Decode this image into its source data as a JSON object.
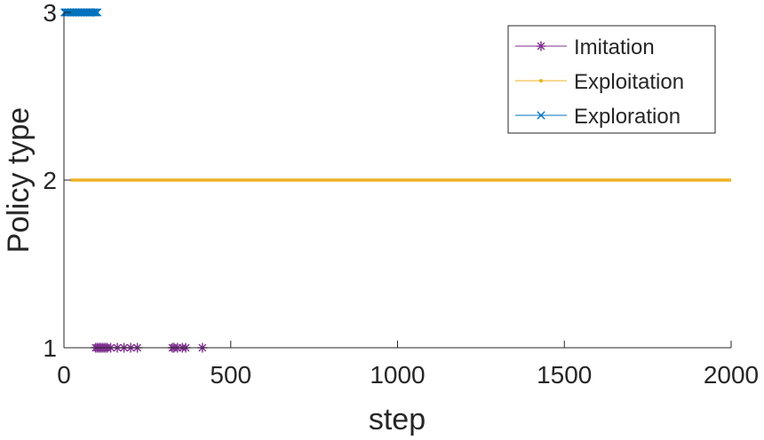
{
  "chart_data": {
    "type": "line",
    "title": "",
    "xlabel": "step",
    "ylabel": "Policy type",
    "xlim": [
      0,
      2000
    ],
    "ylim": [
      1,
      3
    ],
    "x_ticks": [
      0,
      500,
      1000,
      1500,
      2000
    ],
    "x_tick_labels": [
      "0",
      "500",
      "1000",
      "1500",
      "2000"
    ],
    "y_ticks": [
      1,
      2,
      3
    ],
    "y_tick_labels": [
      "1",
      "2",
      "3"
    ],
    "grid": false,
    "legend_position": "top-right",
    "series": [
      {
        "name": "Imitation",
        "color": "#7E2F8E",
        "marker": "asterisk",
        "y": 1,
        "x": [
          95,
          100,
          105,
          110,
          115,
          120,
          125,
          130,
          140,
          160,
          180,
          200,
          220,
          325,
          330,
          340,
          355,
          365,
          415
        ]
      },
      {
        "name": "Exploitation",
        "color": "#EDB120",
        "marker": "dot",
        "y": 2,
        "x_start": 20,
        "x_end": 2000
      },
      {
        "name": "Exploration",
        "color": "#0072BD",
        "marker": "x",
        "y": 3,
        "x": [
          2,
          6,
          10,
          14,
          18,
          22,
          26,
          30,
          34,
          38,
          42,
          46,
          50,
          54,
          58,
          62,
          66,
          70,
          74,
          78,
          82,
          86,
          90,
          95,
          100
        ]
      }
    ]
  }
}
